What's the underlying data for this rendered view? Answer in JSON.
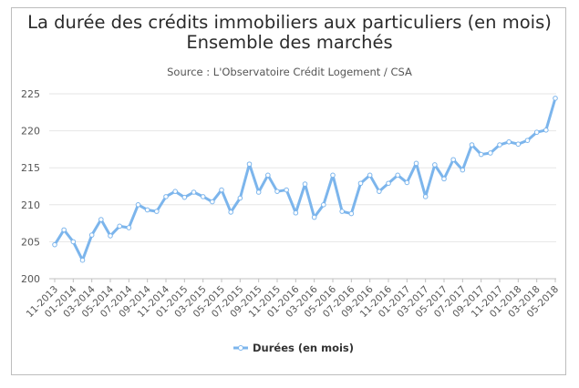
{
  "chart_data": {
    "type": "line",
    "title_line1": "La durée des crédits immobiliers aux particuliers (en mois)",
    "title_line2": "Ensemble des marchés",
    "subtitle": "Source : L'Observatoire Crédit Logement / CSA",
    "ylim": [
      200,
      225
    ],
    "yticks": [
      200,
      205,
      210,
      215,
      220,
      225
    ],
    "grid": true,
    "legend_position": "bottom-center",
    "x_tick_labels": [
      "11-2013",
      "01-2014",
      "03-2014",
      "05-2014",
      "07-2014",
      "09-2014",
      "11-2014",
      "01-2015",
      "03-2015",
      "05-2015",
      "07-2015",
      "09-2015",
      "11-2015",
      "01-2016",
      "03-2016",
      "05-2016",
      "07-2016",
      "09-2016",
      "11-2016",
      "01-2017",
      "03-2017",
      "05-2017",
      "07-2017",
      "09-2017",
      "11-2017",
      "01-2018",
      "03-2018",
      "05-2018"
    ],
    "series": [
      {
        "name": "Durées (en mois)",
        "color": "#7cb5ec",
        "values": [
          204.6,
          206.6,
          205.0,
          202.5,
          205.9,
          208.0,
          205.8,
          207.1,
          206.9,
          210.0,
          209.3,
          209.1,
          211.1,
          211.8,
          211.0,
          211.7,
          211.1,
          210.4,
          212.0,
          209.0,
          210.9,
          215.5,
          211.7,
          214.0,
          211.8,
          212.0,
          208.9,
          212.8,
          208.3,
          210.0,
          214.0,
          209.1,
          208.8,
          212.9,
          214.0,
          211.8,
          212.9,
          214.0,
          213.0,
          215.6,
          211.1,
          215.4,
          213.5,
          216.1,
          214.7,
          218.1,
          216.8,
          217.0,
          218.1,
          218.5,
          218.2,
          218.7,
          219.8,
          220.1,
          224.4
        ]
      }
    ]
  }
}
